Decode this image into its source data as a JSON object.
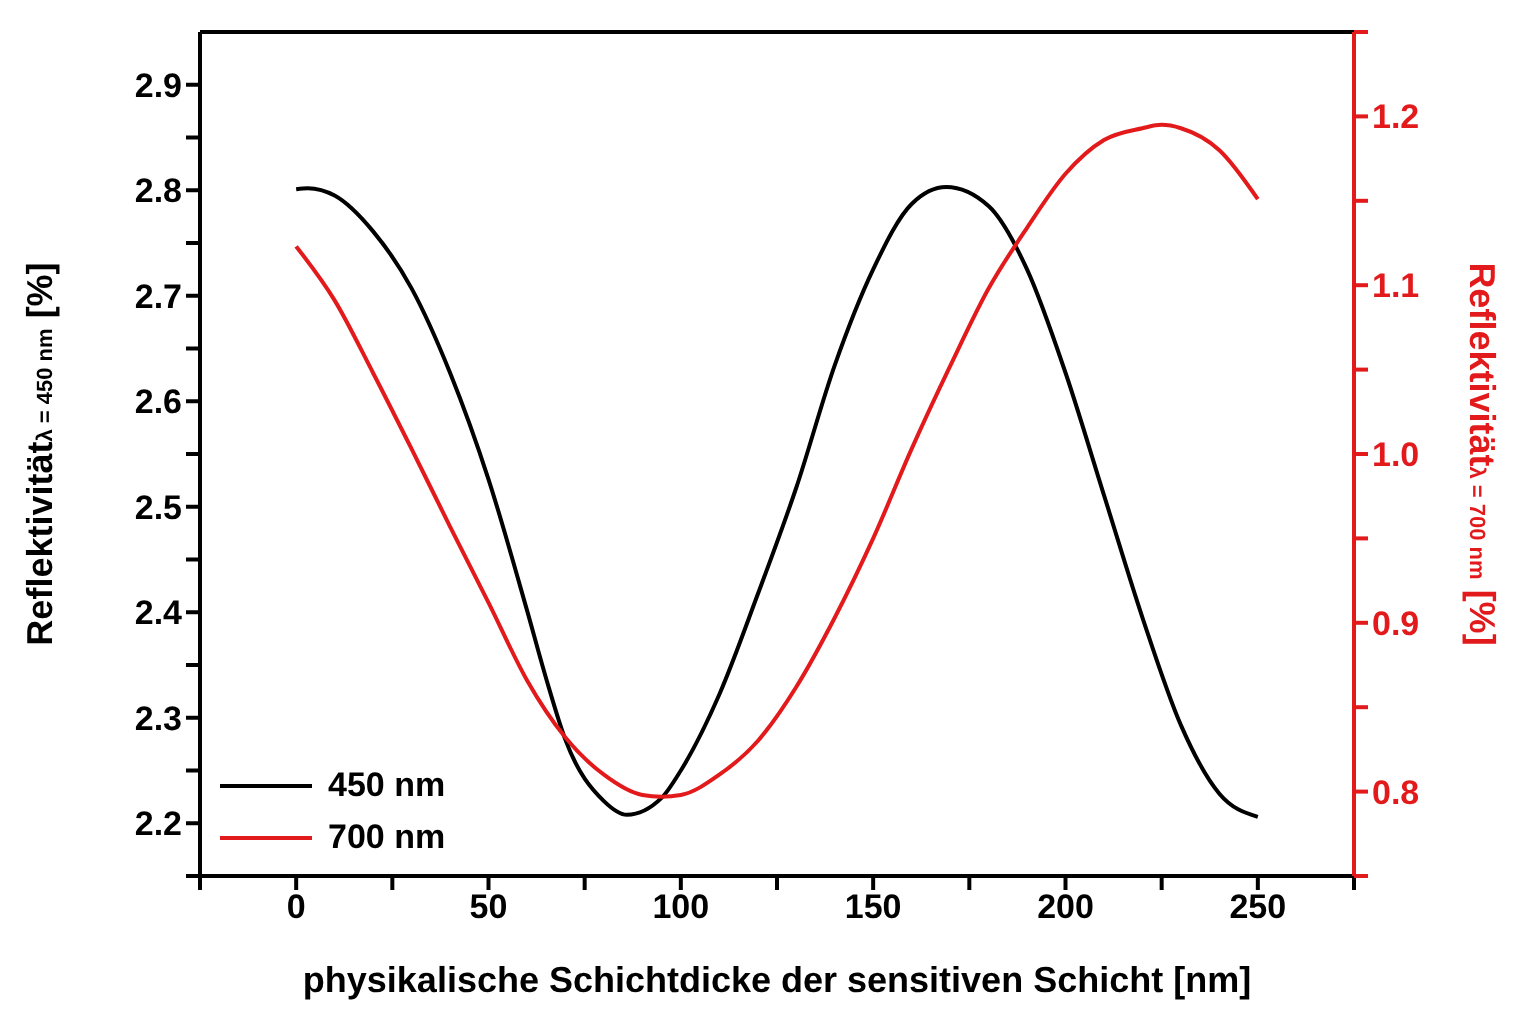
{
  "chart_data": {
    "type": "line",
    "xlabel": "physikalische Schichtdicke der sensitiven Schicht [nm]",
    "ylabel": "Reflektivität$_{λ = 450 nm}$ [%]",
    "y2label": "Reflektivität$_{λ = 700 nm}$ [%]",
    "xlim": [
      -25,
      275
    ],
    "xticks": [
      {
        "value": -25,
        "label": null
      },
      0,
      {
        "value": 25,
        "label": null
      },
      50,
      {
        "value": 75,
        "label": null
      },
      100,
      {
        "value": 125,
        "label": null
      },
      150,
      {
        "value": 175,
        "label": null
      },
      200,
      {
        "value": 225,
        "label": null
      },
      250,
      {
        "value": 275,
        "label": null
      }
    ],
    "ylim": [
      2.15,
      2.95
    ],
    "yticks": [
      {
        "value": 2.15,
        "label": null
      },
      {
        "value": 2.2,
        "label": "2.2"
      },
      {
        "value": 2.25,
        "label": null
      },
      {
        "value": 2.3,
        "label": "2.3"
      },
      {
        "value": 2.35,
        "label": null
      },
      {
        "value": 2.4,
        "label": "2.4"
      },
      {
        "value": 2.45,
        "label": null
      },
      {
        "value": 2.5,
        "label": "2.5"
      },
      {
        "value": 2.55,
        "label": null
      },
      {
        "value": 2.6,
        "label": "2.6"
      },
      {
        "value": 2.65,
        "label": null
      },
      {
        "value": 2.7,
        "label": "2.7"
      },
      {
        "value": 2.75,
        "label": null
      },
      {
        "value": 2.8,
        "label": "2.8"
      },
      {
        "value": 2.85,
        "label": null
      },
      {
        "value": 2.9,
        "label": "2.9"
      }
    ],
    "y2lim": [
      0.75,
      1.25
    ],
    "y2ticks": [
      {
        "value": 0.75,
        "label": null
      },
      {
        "value": 0.8,
        "label": "0.8"
      },
      {
        "value": 0.85,
        "label": null
      },
      {
        "value": 0.9,
        "label": "0.9"
      },
      {
        "value": 0.95,
        "label": null
      },
      {
        "value": 1.0,
        "label": "1.0"
      },
      {
        "value": 1.05,
        "label": null
      },
      {
        "value": 1.1,
        "label": "1.1"
      },
      {
        "value": 1.15,
        "label": null
      },
      {
        "value": 1.2,
        "label": "1.2"
      },
      {
        "value": 1.25,
        "label": null
      }
    ],
    "legend": "bottom left",
    "marker": "none",
    "line_style": "solid",
    "series": [
      {
        "name": "450 nm",
        "color": "#000000",
        "x": [
          0,
          3,
          10,
          20,
          30,
          40,
          50,
          60,
          65,
          70,
          80,
          86,
          95,
          100,
          110,
          120,
          130,
          140,
          150,
          160,
          169,
          180,
          190,
          200,
          210,
          220,
          230,
          240,
          250
        ],
        "values": [
          2.801,
          2.802,
          2.795,
          2.761,
          2.707,
          2.627,
          2.526,
          2.402,
          2.337,
          2.279,
          2.221,
          2.208,
          2.224,
          2.25,
          2.322,
          2.417,
          2.518,
          2.634,
          2.725,
          2.787,
          2.803,
          2.785,
          2.725,
          2.627,
          2.511,
          2.395,
          2.293,
          2.228,
          2.206
        ]
      },
      {
        "name": "700 nm",
        "color": "#e31a1c",
        "axis": "y2",
        "x": [
          0,
          10,
          20,
          30,
          40,
          50,
          60,
          70,
          80,
          90,
          95,
          100,
          110,
          120,
          130,
          140,
          150,
          160,
          170,
          180,
          190,
          200,
          210,
          220,
          225,
          230,
          240,
          250
        ],
        "values": [
          1.123,
          1.091,
          1.048,
          1.003,
          0.957,
          0.912,
          0.866,
          0.832,
          0.81,
          0.798,
          0.797,
          0.798,
          0.81,
          0.83,
          0.862,
          0.903,
          0.95,
          1.003,
          1.052,
          1.098,
          1.134,
          1.166,
          1.186,
          1.193,
          1.195,
          1.193,
          1.18,
          1.151
        ]
      }
    ]
  }
}
